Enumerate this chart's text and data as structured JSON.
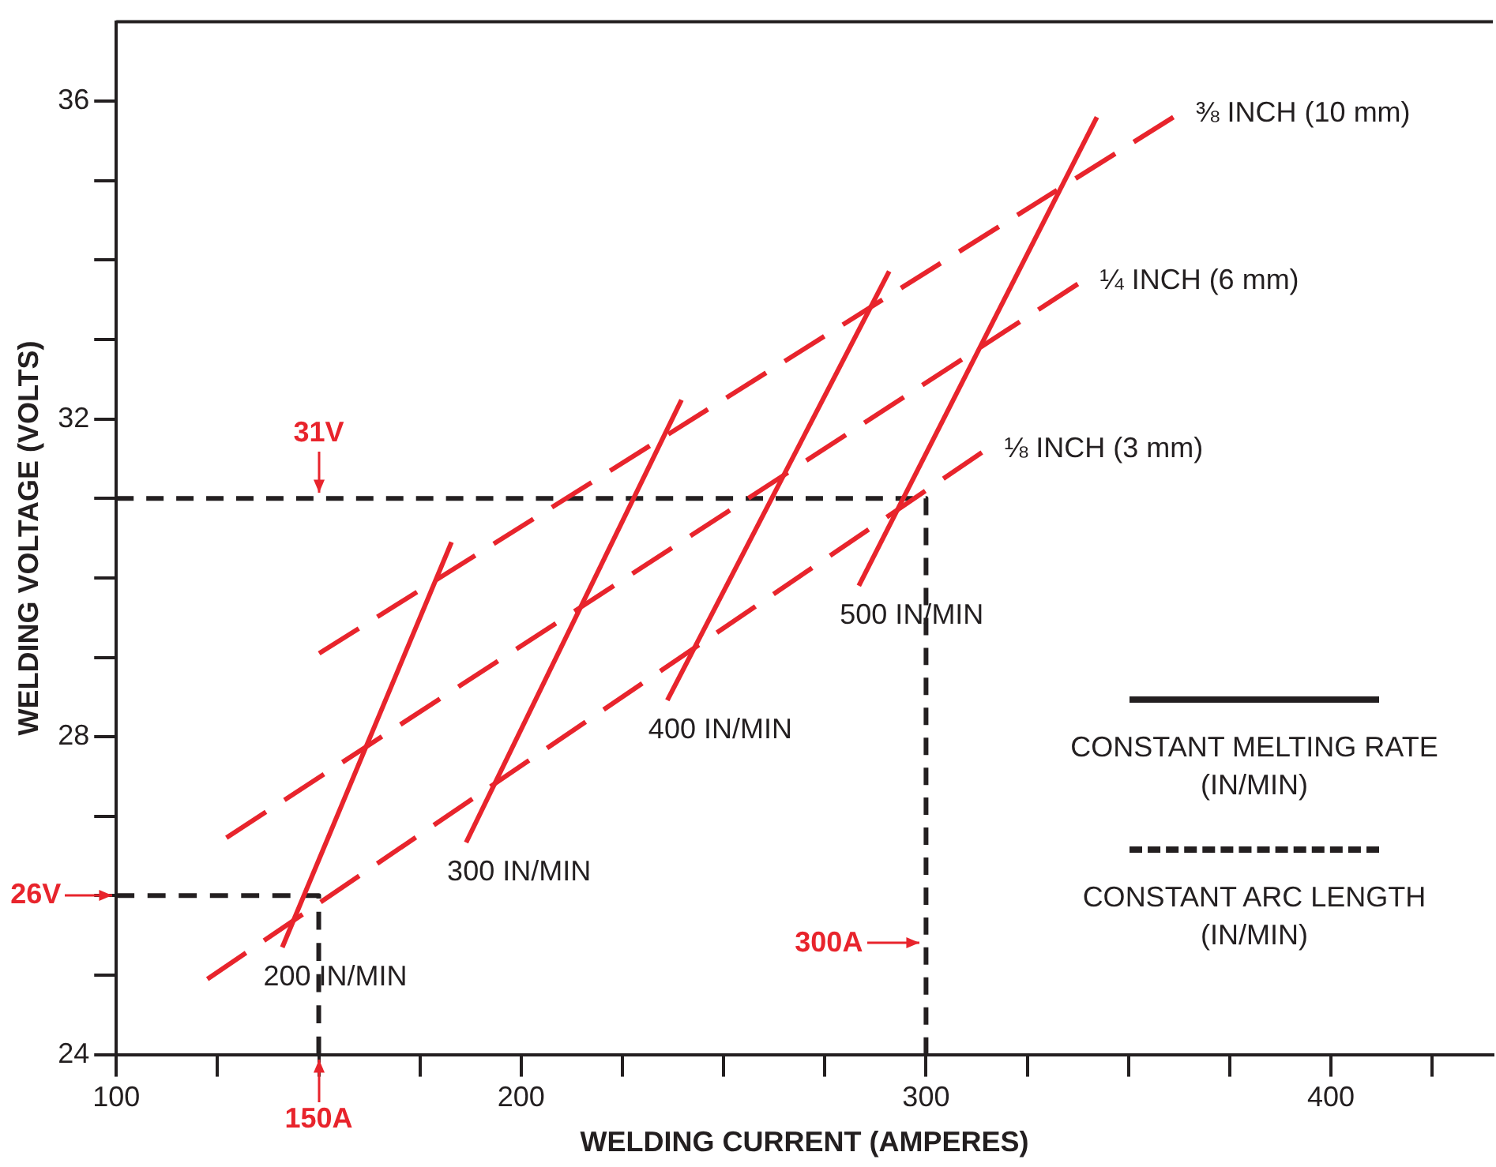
{
  "chart_data": {
    "type": "line",
    "xlabel": "WELDING CURRENT (AMPERES)",
    "ylabel": "WELDING VOLTAGE (VOLTS)",
    "xlim": [
      100,
      440
    ],
    "ylim": [
      24,
      37
    ],
    "xticks": [
      100,
      {
        "value": 125,
        "label": null
      },
      {
        "value": 150,
        "label": null
      },
      {
        "value": 175,
        "label": null
      },
      200,
      {
        "value": 225,
        "label": null
      },
      {
        "value": 250,
        "label": null
      },
      {
        "value": 275,
        "label": null
      },
      300,
      {
        "value": 325,
        "label": null
      },
      {
        "value": 350,
        "label": null
      },
      {
        "value": 375,
        "label": null
      },
      400,
      {
        "value": 425,
        "label": null
      }
    ],
    "yticks": [
      24,
      {
        "value": 25,
        "label": null
      },
      {
        "value": 26,
        "label": null
      },
      {
        "value": 27,
        "label": null
      },
      28,
      {
        "value": 29,
        "label": null
      },
      {
        "value": 30,
        "label": null
      },
      {
        "value": 31,
        "label": null
      },
      32,
      {
        "value": 33,
        "label": null
      },
      {
        "value": 34,
        "label": null
      },
      {
        "value": 35,
        "label": null
      },
      36
    ],
    "grid": false,
    "marker": "none",
    "series": [
      {
        "name": "200 IN/MIN",
        "color": "#e8242c",
        "line_style": "solid",
        "x": [
          141,
          182.8
        ],
        "values": [
          25.35,
          30.45
        ]
      },
      {
        "name": "300 IN/MIN",
        "color": "#e8242c",
        "line_style": "solid",
        "x": [
          186.4,
          239.6
        ],
        "values": [
          26.67,
          32.24
        ]
      },
      {
        "name": "400 IN/MIN",
        "color": "#e8242c",
        "line_style": "solid",
        "x": [
          236.1,
          290.9
        ],
        "values": [
          28.46,
          33.86
        ]
      },
      {
        "name": "500 IN/MIN",
        "color": "#e8242c",
        "line_style": "solid",
        "x": [
          283.4,
          342.2
        ],
        "values": [
          29.9,
          35.8
        ]
      },
      {
        "name": "⅜ INCH (10 mm)",
        "color": "#e8242c",
        "line_style": "dashed",
        "x": [
          150.1,
          361.1
        ],
        "values": [
          29.05,
          35.8
        ]
      },
      {
        "name": "¼ INCH (6 mm)",
        "color": "#e8242c",
        "line_style": "dashed",
        "x": [
          127.2,
          337.5
        ],
        "values": [
          26.73,
          33.7
        ]
      },
      {
        "name": "⅛ INCH (3 mm)",
        "color": "#e8242c",
        "line_style": "dashed",
        "x": [
          122.5,
          313.8
        ],
        "values": [
          24.95,
          31.58
        ]
      },
      {
        "color": "#231f20",
        "line_style": "dashed",
        "x": [
          100,
          300,
          300
        ],
        "values": [
          31,
          31,
          24
        ]
      },
      {
        "color": "#231f20",
        "line_style": "dashed",
        "x": [
          100,
          150,
          150
        ],
        "values": [
          26,
          26,
          24
        ]
      }
    ],
    "annotations": [
      {
        "text": "31V",
        "x": 150,
        "y": 31
      },
      {
        "text": "26V",
        "x": 100,
        "y": 26
      },
      {
        "text": "300A",
        "x": 300,
        "y": 25.4
      },
      {
        "text": "150A",
        "x": 150,
        "y": 24
      },
      "CONSTANT MELTING RATE (IN/MIN)",
      "CONSTANT ARC LENGTH (IN/MIN)"
    ]
  }
}
